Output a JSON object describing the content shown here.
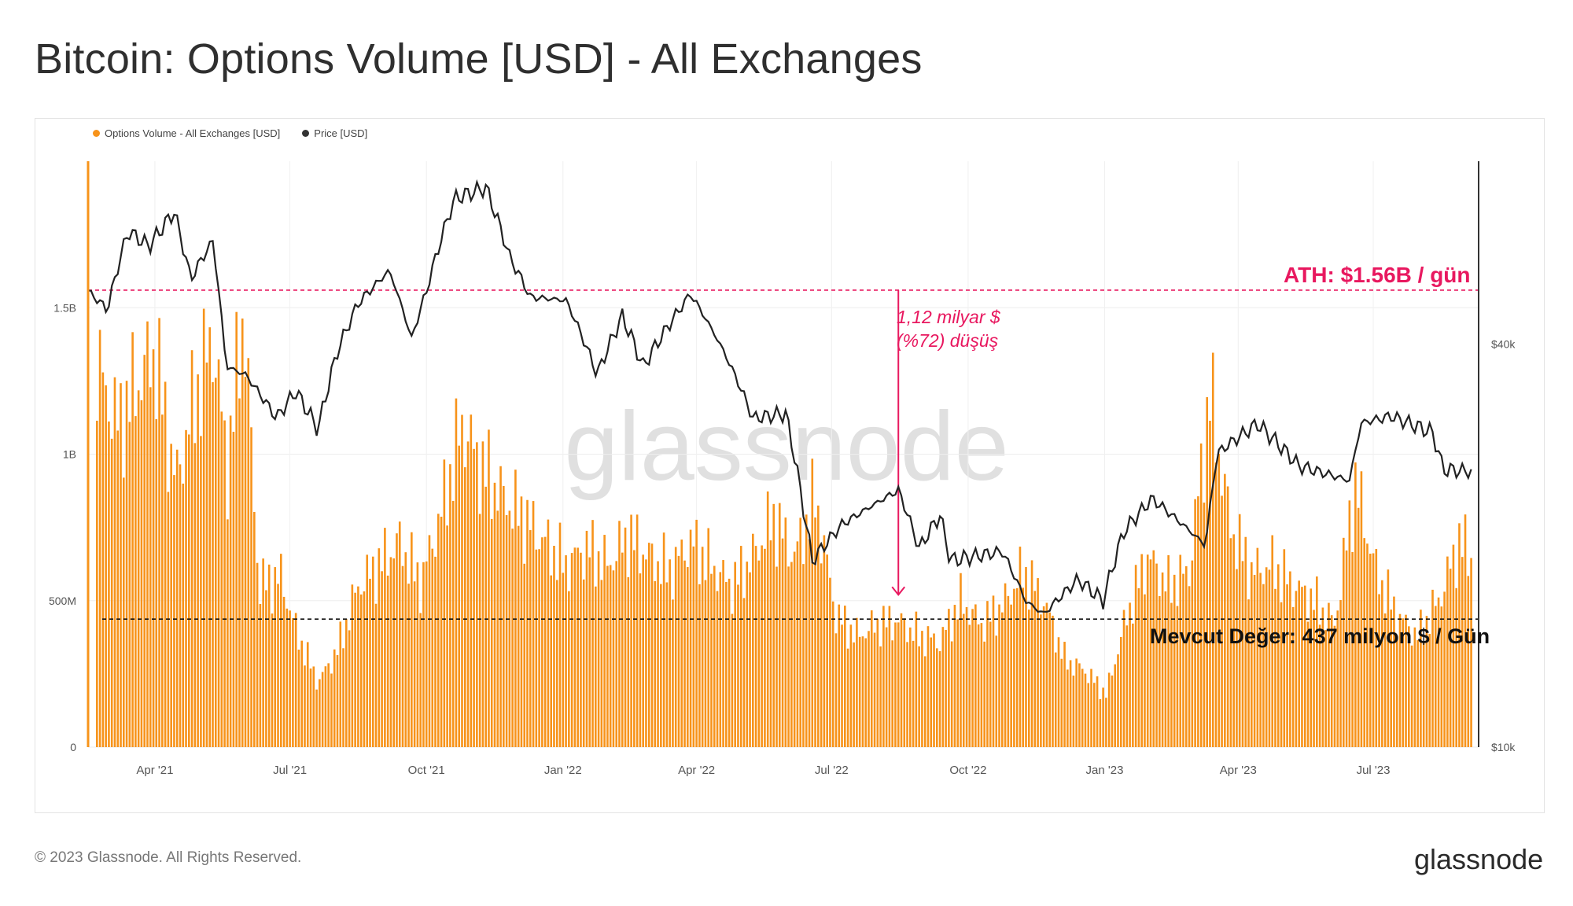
{
  "header": {
    "title": "Bitcoin: Options Volume [USD] - All Exchanges"
  },
  "legend": {
    "volume_label": "Options Volume - All Exchanges [USD]",
    "price_label": "Price [USD]"
  },
  "watermark": "glassnode",
  "annotations": {
    "ath": "ATH: $1.56B / gün",
    "drop_line1": "1,12 milyar $",
    "drop_line2": "(%72) düşüş",
    "current": "Mevcut Değer: 437 milyon $ / Gün"
  },
  "footer": {
    "copyright": "© 2023 Glassnode. All Rights Reserved.",
    "brand": "glassnode"
  },
  "colors": {
    "volume": "#f7931a",
    "price": "#222222",
    "annotation": "#e8185f"
  },
  "chart_data": {
    "type": "bar",
    "x_ticks": [
      "Apr '21",
      "Jul '21",
      "Oct '21",
      "Jan '22",
      "Apr '22",
      "Jul '22",
      "Oct '22",
      "Jan '23",
      "Apr '23",
      "Jul '23"
    ],
    "y_ticks": [
      "0",
      "500M",
      "1B",
      "1.5B"
    ],
    "y2_ticks": [
      "$10k",
      "$40k"
    ],
    "y2_scale": "log",
    "x_range": [
      "2021-02-15",
      "2023-09-10"
    ],
    "ylim": [
      0,
      2000000000
    ],
    "y2lim": [
      10000,
      75000
    ],
    "reference_lines": {
      "ath": 1560000000,
      "current": 437000000
    },
    "drop_arrow": {
      "date": "2022-08-15",
      "from": 1560000000,
      "to": 520000000
    },
    "series": [
      {
        "name": "Options Volume - All Exchanges [USD]",
        "kind": "bar",
        "points": [
          [
            "2021-02-21",
            1300000000
          ],
          [
            "2021-03-07",
            1100000000
          ],
          [
            "2021-03-21",
            1250000000
          ],
          [
            "2021-04-01",
            1350000000
          ],
          [
            "2021-04-15",
            900000000
          ],
          [
            "2021-04-26",
            1150000000
          ],
          [
            "2021-05-10",
            1400000000
          ],
          [
            "2021-05-20",
            950000000
          ],
          [
            "2021-05-31",
            1500000000
          ],
          [
            "2021-06-10",
            550000000
          ],
          [
            "2021-06-25",
            580000000
          ],
          [
            "2021-07-05",
            400000000
          ],
          [
            "2021-07-20",
            220000000
          ],
          [
            "2021-08-02",
            330000000
          ],
          [
            "2021-08-16",
            550000000
          ],
          [
            "2021-08-30",
            620000000
          ],
          [
            "2021-09-13",
            700000000
          ],
          [
            "2021-09-27",
            560000000
          ],
          [
            "2021-10-11",
            800000000
          ],
          [
            "2021-10-25",
            1100000000
          ],
          [
            "2021-11-08",
            950000000
          ],
          [
            "2021-11-22",
            850000000
          ],
          [
            "2021-12-06",
            780000000
          ],
          [
            "2021-12-20",
            700000000
          ],
          [
            "2022-01-03",
            620000000
          ],
          [
            "2022-01-17",
            680000000
          ],
          [
            "2022-01-31",
            620000000
          ],
          [
            "2022-02-14",
            720000000
          ],
          [
            "2022-02-28",
            650000000
          ],
          [
            "2022-03-14",
            600000000
          ],
          [
            "2022-03-28",
            700000000
          ],
          [
            "2022-04-11",
            620000000
          ],
          [
            "2022-04-25",
            550000000
          ],
          [
            "2022-05-09",
            650000000
          ],
          [
            "2022-05-23",
            780000000
          ],
          [
            "2022-06-06",
            650000000
          ],
          [
            "2022-06-20",
            850000000
          ],
          [
            "2022-07-04",
            450000000
          ],
          [
            "2022-07-18",
            380000000
          ],
          [
            "2022-08-01",
            420000000
          ],
          [
            "2022-08-15",
            430000000
          ],
          [
            "2022-08-29",
            380000000
          ],
          [
            "2022-09-12",
            360000000
          ],
          [
            "2022-09-26",
            500000000
          ],
          [
            "2022-10-10",
            420000000
          ],
          [
            "2022-10-24",
            480000000
          ],
          [
            "2022-11-07",
            600000000
          ],
          [
            "2022-11-21",
            500000000
          ],
          [
            "2022-12-05",
            300000000
          ],
          [
            "2022-12-19",
            260000000
          ],
          [
            "2023-01-02",
            180000000
          ],
          [
            "2023-01-16",
            450000000
          ],
          [
            "2023-01-30",
            650000000
          ],
          [
            "2023-02-13",
            550000000
          ],
          [
            "2023-02-27",
            600000000
          ],
          [
            "2023-03-13",
            1200000000
          ],
          [
            "2023-03-27",
            750000000
          ],
          [
            "2023-04-10",
            600000000
          ],
          [
            "2023-04-24",
            620000000
          ],
          [
            "2023-05-08",
            550000000
          ],
          [
            "2023-05-22",
            500000000
          ],
          [
            "2023-06-05",
            420000000
          ],
          [
            "2023-06-19",
            900000000
          ],
          [
            "2023-07-03",
            600000000
          ],
          [
            "2023-07-17",
            450000000
          ],
          [
            "2023-07-31",
            380000000
          ],
          [
            "2023-08-14",
            500000000
          ],
          [
            "2023-08-28",
            700000000
          ],
          [
            "2023-09-05",
            650000000
          ]
        ]
      },
      {
        "name": "Price [USD]",
        "kind": "line",
        "points": [
          [
            "2021-02-15",
            48000
          ],
          [
            "2021-02-28",
            45000
          ],
          [
            "2021-03-14",
            59000
          ],
          [
            "2021-03-28",
            56000
          ],
          [
            "2021-04-14",
            63000
          ],
          [
            "2021-04-25",
            50000
          ],
          [
            "2021-05-10",
            57000
          ],
          [
            "2021-05-19",
            37000
          ],
          [
            "2021-06-01",
            36000
          ],
          [
            "2021-06-22",
            31000
          ],
          [
            "2021-07-05",
            34000
          ],
          [
            "2021-07-20",
            29800
          ],
          [
            "2021-08-02",
            39000
          ],
          [
            "2021-08-16",
            46000
          ],
          [
            "2021-09-06",
            51500
          ],
          [
            "2021-09-21",
            40700
          ],
          [
            "2021-10-01",
            48000
          ],
          [
            "2021-10-20",
            66000
          ],
          [
            "2021-11-10",
            68500
          ],
          [
            "2021-11-26",
            54000
          ],
          [
            "2021-12-10",
            47000
          ],
          [
            "2022-01-03",
            46500
          ],
          [
            "2022-01-24",
            36000
          ],
          [
            "2022-02-10",
            44000
          ],
          [
            "2022-02-24",
            37000
          ],
          [
            "2022-03-28",
            47500
          ],
          [
            "2022-04-18",
            39500
          ],
          [
            "2022-05-09",
            31000
          ],
          [
            "2022-05-31",
            31500
          ],
          [
            "2022-06-13",
            22000
          ],
          [
            "2022-06-18",
            19000
          ],
          [
            "2022-07-08",
            21500
          ],
          [
            "2022-08-15",
            24200
          ],
          [
            "2022-08-29",
            19800
          ],
          [
            "2022-09-12",
            22200
          ],
          [
            "2022-09-19",
            19000
          ],
          [
            "2022-10-24",
            19600
          ],
          [
            "2022-11-09",
            16500
          ],
          [
            "2022-11-21",
            15800
          ],
          [
            "2022-12-14",
            17800
          ],
          [
            "2022-12-31",
            16550
          ],
          [
            "2023-01-14",
            21000
          ],
          [
            "2023-02-02",
            23500
          ],
          [
            "2023-03-10",
            20000
          ],
          [
            "2023-03-18",
            27500
          ],
          [
            "2023-04-14",
            30400
          ],
          [
            "2023-05-12",
            26300
          ],
          [
            "2023-06-15",
            25000
          ],
          [
            "2023-06-23",
            30500
          ],
          [
            "2023-07-13",
            31200
          ],
          [
            "2023-08-10",
            29500
          ],
          [
            "2023-08-17",
            26000
          ],
          [
            "2023-09-05",
            25800
          ]
        ]
      }
    ]
  }
}
